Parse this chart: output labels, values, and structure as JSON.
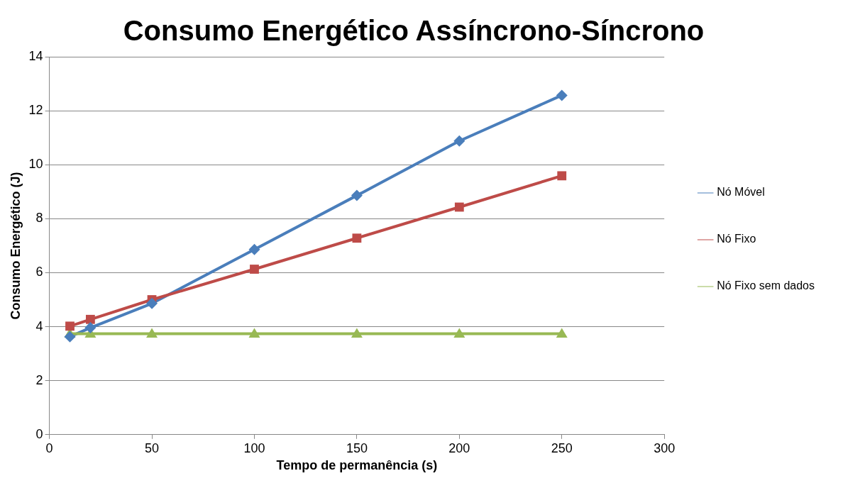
{
  "chart_data": {
    "type": "line",
    "title": "Consumo Energético Assíncrono-Síncrono",
    "xlabel": "Tempo de permanência (s)",
    "ylabel": "Consumo Energético (J)",
    "x": [
      10,
      20,
      50,
      100,
      150,
      200,
      250
    ],
    "series": [
      {
        "name": "Nó Móvel",
        "color": "#4a7ebb",
        "marker": "diamond",
        "values": [
          3.63,
          3.96,
          4.86,
          6.86,
          8.86,
          10.88,
          12.57
        ]
      },
      {
        "name": "Nó Fixo",
        "color": "#be4b48",
        "marker": "square",
        "values": [
          4.02,
          4.27,
          5.0,
          6.13,
          7.28,
          8.43,
          9.59
        ]
      },
      {
        "name": "Nó Fixo sem dados",
        "color": "#98b954",
        "marker": "triangle",
        "values": [
          3.74,
          3.74,
          3.74,
          3.74,
          3.74,
          3.74,
          3.74
        ]
      }
    ],
    "xlim": [
      0,
      300
    ],
    "xticks": [
      0,
      50,
      100,
      150,
      200,
      250,
      300
    ],
    "ylim": [
      0,
      14
    ],
    "yticks": [
      0,
      2,
      4,
      6,
      8,
      10,
      12,
      14
    ],
    "grid": "y",
    "legend": "right"
  }
}
